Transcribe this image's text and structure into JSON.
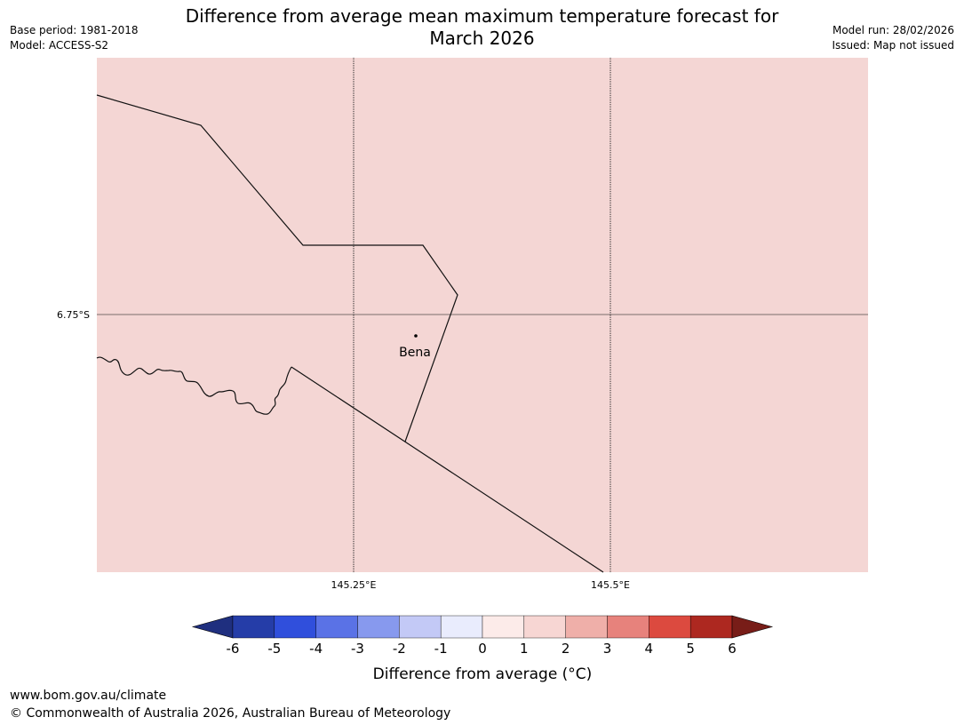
{
  "header": {
    "title_line1": "Difference from average mean maximum temperature forecast for",
    "title_line2": "March 2026",
    "base_period": "Base period: 1981-2018",
    "model": "Model: ACCESS-S2",
    "model_run": "Model run: 28/02/2026",
    "issued": "Issued: Map not issued"
  },
  "map": {
    "fill_color": "#f4d6d4",
    "grid_color": "#7a6f6d",
    "lat_label": "6.75°S",
    "lon_labels": [
      "145.25°E",
      "145.5°E"
    ],
    "place_label": "Bena"
  },
  "colorbar": {
    "ticks": [
      "-6",
      "-5",
      "-4",
      "-3",
      "-2",
      "-1",
      "0",
      "1",
      "2",
      "3",
      "4",
      "5",
      "6"
    ],
    "colors": [
      "#1f2f7f",
      "#253da8",
      "#304fdc",
      "#5a72e6",
      "#8799ee",
      "#c3c9f6",
      "#e9ecfd",
      "#fcebe9",
      "#f7d6d3",
      "#efafa9",
      "#e7827c",
      "#dc4a3f",
      "#ad2820",
      "#781d18"
    ],
    "label": "Difference from average (°C)"
  },
  "footer": {
    "url": "www.bom.gov.au/climate",
    "copyright": "© Commonwealth of Australia 2026, Australian Bureau of Meteorology"
  }
}
